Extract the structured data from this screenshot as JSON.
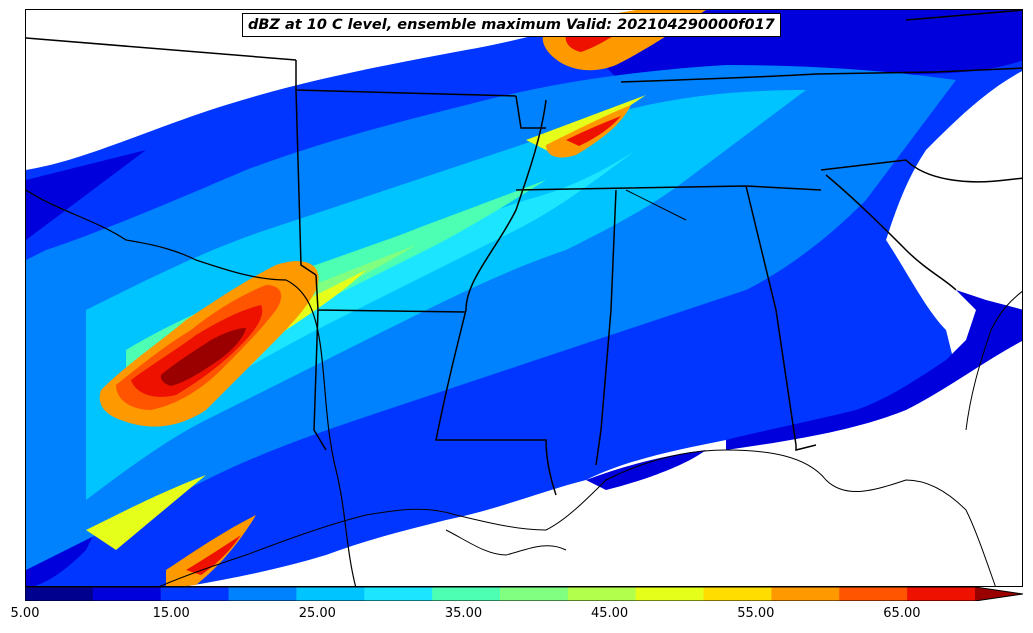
{
  "title": "dBZ at 10 C level, ensemble maximum Valid: 202104290000f017",
  "map": {
    "variable": "dBZ at 10 C level",
    "statistic": "ensemble maximum",
    "valid_time": "202104290000f017",
    "region": "South-central and southeastern United States"
  },
  "colorbar": {
    "min": 5,
    "max": 70,
    "step": 5,
    "extend": "max",
    "colors": [
      "#00008f",
      "#0000dc",
      "#0036ff",
      "#0082ff",
      "#00c4ff",
      "#1ce6ff",
      "#4cffb2",
      "#80ff80",
      "#b2ff4c",
      "#e6ff1a",
      "#ffdd00",
      "#ff9900",
      "#ff5500",
      "#ee1100",
      "#9a0000"
    ],
    "tick_labels": [
      "5.00",
      "15.00",
      "25.00",
      "35.00",
      "45.00",
      "55.00",
      "65.00"
    ]
  },
  "palette": {
    "coast": "#000000",
    "background": "#ffffff"
  }
}
